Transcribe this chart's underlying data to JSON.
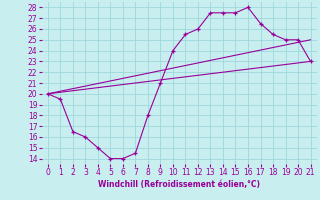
{
  "xlabel": "Windchill (Refroidissement éolien,°C)",
  "bg_color": "#c8eef0",
  "grid_color": "#9dd8dc",
  "line_color": "#990099",
  "xlim": [
    -0.5,
    21.5
  ],
  "ylim": [
    13.5,
    28.5
  ],
  "xticks": [
    0,
    1,
    2,
    3,
    4,
    5,
    6,
    7,
    8,
    9,
    10,
    11,
    12,
    13,
    14,
    15,
    16,
    17,
    18,
    19,
    20,
    21
  ],
  "yticks": [
    14,
    15,
    16,
    17,
    18,
    19,
    20,
    21,
    22,
    23,
    24,
    25,
    26,
    27,
    28
  ],
  "curve_x": [
    0,
    1,
    2,
    3,
    4,
    5,
    6,
    7,
    8,
    9,
    10,
    11,
    12,
    13,
    14,
    15,
    16,
    17,
    18,
    19,
    20,
    21
  ],
  "curve_y": [
    20,
    19.5,
    16.5,
    16.0,
    15.0,
    14.0,
    14.0,
    14.5,
    18.0,
    21.0,
    24.0,
    25.5,
    26.0,
    27.5,
    27.5,
    27.5,
    28.0,
    26.5,
    25.5,
    25.0,
    25.0,
    23.0
  ],
  "line1_x": [
    0,
    21
  ],
  "line1_y": [
    20,
    23.0
  ],
  "line2_x": [
    0,
    21
  ],
  "line2_y": [
    20,
    25.0
  ],
  "tick_fontsize": 5.5,
  "xlabel_fontsize": 5.5
}
